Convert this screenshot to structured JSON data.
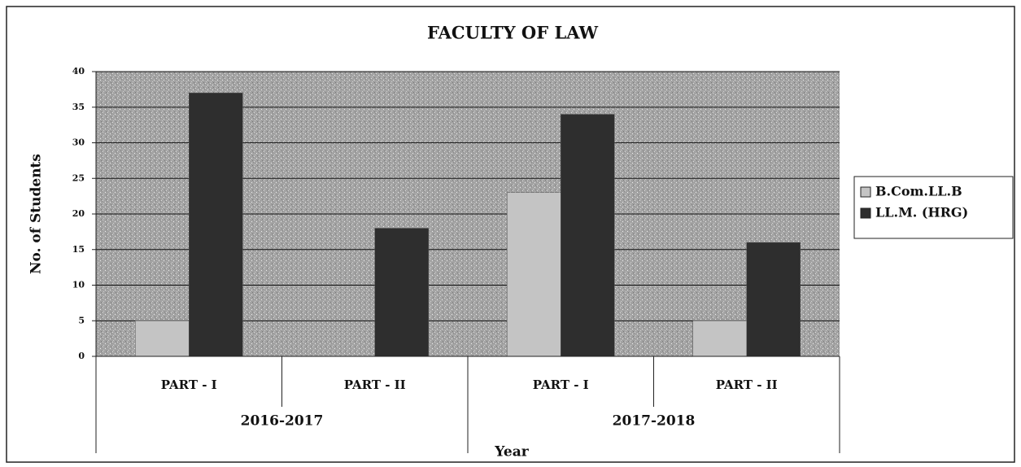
{
  "chart_data": {
    "type": "bar",
    "title": "FACULTY OF LAW",
    "x_label": "Year",
    "y_label": "No. of Students",
    "categories": [
      "PART - I",
      "PART - II",
      "PART - I",
      "PART - II"
    ],
    "groups": [
      "2016-2017",
      "2017-2018"
    ],
    "series": [
      {
        "name": "B.Com.LL.B",
        "color": "#c4c4c4",
        "values": [
          5,
          0,
          23,
          5
        ]
      },
      {
        "name": "LL.M. (HRG)",
        "color": "#2e2e2e",
        "values": [
          37,
          18,
          34,
          16
        ]
      }
    ],
    "ylim": [
      0,
      40
    ],
    "yticks": [
      0,
      5,
      10,
      15,
      20,
      25,
      30,
      35,
      40
    ],
    "grid": true,
    "legend": "right"
  }
}
